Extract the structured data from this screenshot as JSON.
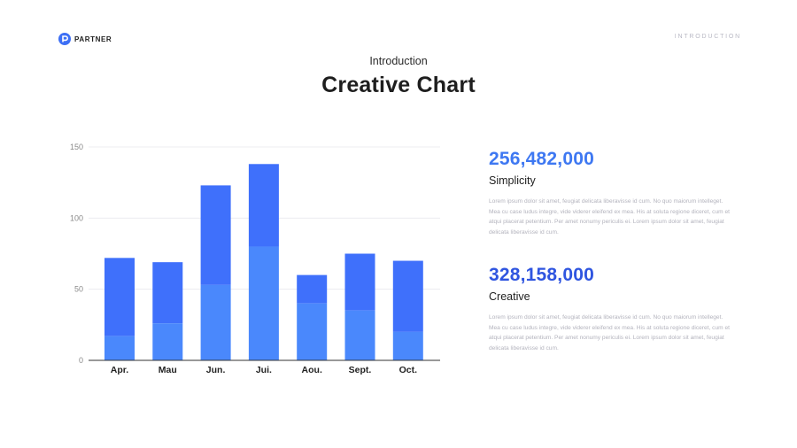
{
  "brand": {
    "name": "PARTNER",
    "logo_icon": "partner-logo-icon"
  },
  "header": {
    "section": "INTRODUCTION"
  },
  "slide": {
    "subtitle": "Introduction",
    "title": "Creative Chart"
  },
  "colors": {
    "accent": "#3d6ff5",
    "bar_top": "#3f70fb",
    "bar_bottom": "#4a88fc",
    "stat1": "#3e78f2",
    "stat2": "#2f55e0"
  },
  "chart_data": {
    "type": "bar",
    "stacked": true,
    "categories": [
      "Apr.",
      "Mau",
      "Jun.",
      "Jui.",
      "Aou.",
      "Sept.",
      "Oct."
    ],
    "series": [
      {
        "values": [
          17,
          26,
          53,
          80,
          40,
          35,
          20
        ]
      },
      {
        "values": [
          55,
          43,
          70,
          58,
          20,
          40,
          50
        ]
      }
    ],
    "totals": [
      72,
      69,
      123,
      138,
      60,
      75,
      70
    ],
    "yticks": [
      0,
      50,
      100,
      150
    ],
    "ylim": [
      0,
      150
    ],
    "grid": true,
    "legend": "none"
  },
  "stats": [
    {
      "value": "256,482,000",
      "label": "Simplicity",
      "body": "Lorem ipsum dolor sit amet, feugiat delicata liberavisse id cum. No quo maiorum intelleget. Mea cu case ludus integre, vide viderer eleifend ex mea. His at soluta regione diceret, cum et atqui placerat petentium. Per amet nonumy periculis ei. Lorem ipsum dolor sit amet, feugiat delicata liberavisse id cum."
    },
    {
      "value": "328,158,000",
      "label": "Creative",
      "body": "Lorem ipsum dolor sit amet, feugiat delicata liberavisse id cum. No quo maiorum intelleget. Mea cu case ludus integre, vide viderer eleifend ex mea. His at soluta regione diceret, cum et atqui placerat petentium. Per amet nonumy periculis ei. Lorem ipsum dolor sit amet, feugiat delicata liberavisse id cum."
    }
  ]
}
